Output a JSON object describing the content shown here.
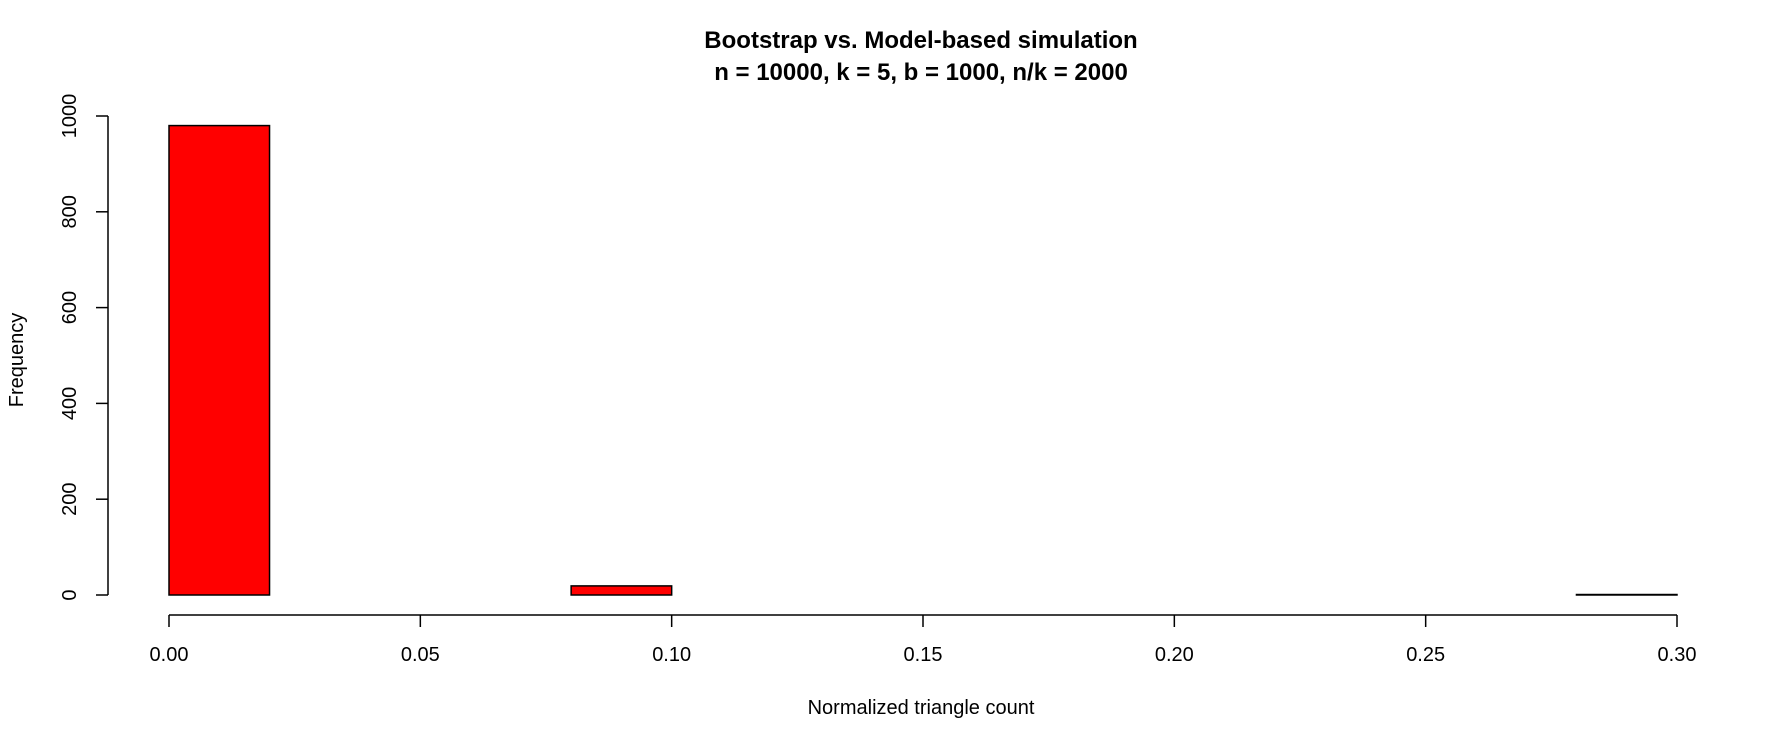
{
  "chart_data": {
    "type": "bar",
    "title": "Bootstrap vs. Model-based simulation",
    "subtitle": "n = 10000, k = 5, b = 1000, n/k = 2000",
    "xlabel": "Normalized triangle count",
    "ylabel": "Frequency",
    "xlim": [
      0,
      0.3
    ],
    "ylim": [
      0,
      1000
    ],
    "x_ticks": [
      "0.00",
      "0.05",
      "0.10",
      "0.15",
      "0.20",
      "0.25",
      "0.30"
    ],
    "x_tick_values": [
      0,
      0.05,
      0.1,
      0.15,
      0.2,
      0.25,
      0.3
    ],
    "y_ticks": [
      "0",
      "200",
      "400",
      "600",
      "800",
      "1000"
    ],
    "y_tick_values": [
      0,
      200,
      400,
      600,
      800,
      1000
    ],
    "bins": [
      {
        "x0": 0.0,
        "x1": 0.02,
        "value": 980
      },
      {
        "x0": 0.02,
        "x1": 0.04,
        "value": 0
      },
      {
        "x0": 0.04,
        "x1": 0.06,
        "value": 0
      },
      {
        "x0": 0.06,
        "x1": 0.08,
        "value": 0
      },
      {
        "x0": 0.08,
        "x1": 0.1,
        "value": 19
      },
      {
        "x0": 0.1,
        "x1": 0.12,
        "value": 0
      },
      {
        "x0": 0.12,
        "x1": 0.14,
        "value": 0
      },
      {
        "x0": 0.14,
        "x1": 0.16,
        "value": 0
      },
      {
        "x0": 0.16,
        "x1": 0.18,
        "value": 0
      },
      {
        "x0": 0.18,
        "x1": 0.2,
        "value": 0
      },
      {
        "x0": 0.2,
        "x1": 0.22,
        "value": 0
      },
      {
        "x0": 0.22,
        "x1": 0.24,
        "value": 0
      },
      {
        "x0": 0.24,
        "x1": 0.26,
        "value": 0
      },
      {
        "x0": 0.26,
        "x1": 0.28,
        "value": 0
      },
      {
        "x0": 0.28,
        "x1": 0.3,
        "value": 1
      }
    ],
    "bar_color": "#ff0000",
    "bar_stroke": "#000000",
    "grid": false,
    "legend": "none"
  }
}
